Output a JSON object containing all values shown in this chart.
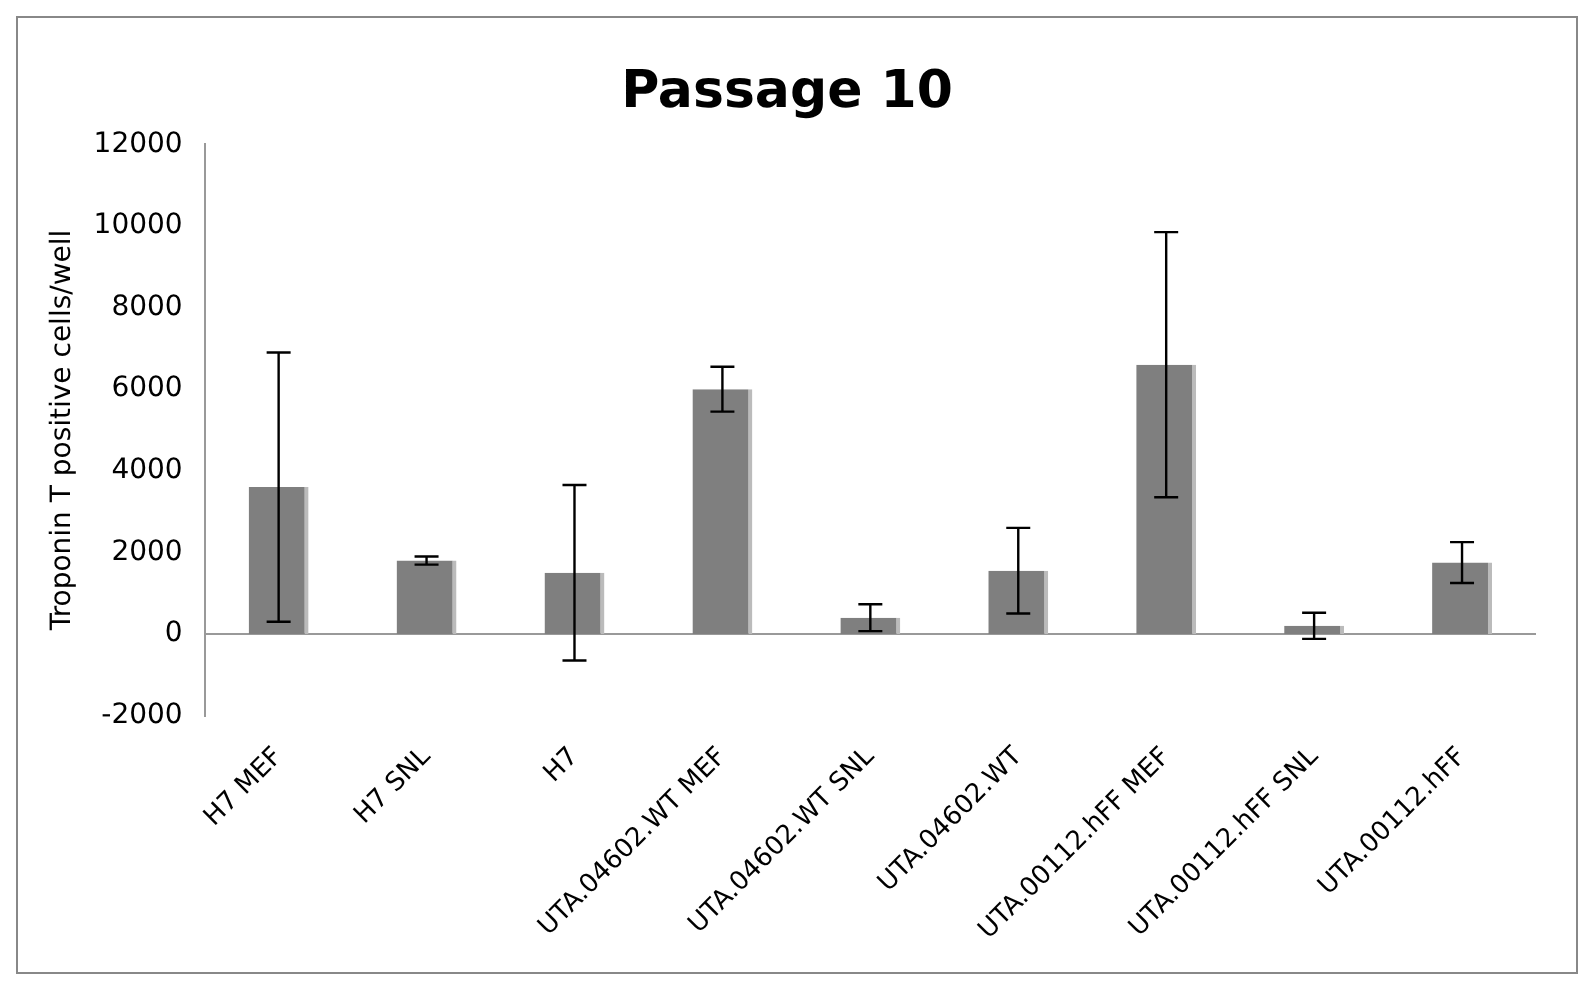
{
  "chart_data": {
    "type": "bar",
    "title": "Passage 10",
    "ylabel": "Troponin T positive cells/well",
    "categories": [
      "H7 MEF",
      "H7 SNL",
      "H7",
      "UTA.04602.WT MEF",
      "UTA.04602.WT SNL",
      "UTA.04602.WT",
      "UTA.00112.hFF MEF",
      "UTA.00112.hFF SNL",
      "UTA.00112.hFF"
    ],
    "values": [
      3600,
      1800,
      1500,
      6000,
      400,
      1550,
      6600,
      200,
      1750
    ],
    "errors": [
      3300,
      100,
      2150,
      550,
      330,
      1050,
      3250,
      320,
      500
    ],
    "color": "#7f7f7f",
    "ylim": [
      -2000,
      12000
    ],
    "yticks": [
      -2000,
      0,
      2000,
      4000,
      6000,
      8000,
      10000,
      12000
    ],
    "legend": false
  }
}
